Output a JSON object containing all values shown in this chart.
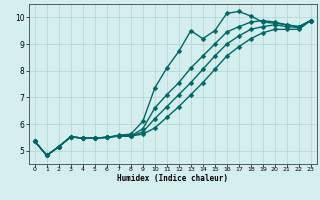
{
  "xlabel": "Humidex (Indice chaleur)",
  "bg_color": "#d4eeee",
  "grid_color": "#b8d8d8",
  "line_color": "#006666",
  "xlim": [
    -0.5,
    23.5
  ],
  "ylim": [
    4.5,
    10.5
  ],
  "xticks": [
    0,
    1,
    2,
    3,
    4,
    5,
    6,
    7,
    8,
    9,
    10,
    11,
    12,
    13,
    14,
    15,
    16,
    17,
    18,
    19,
    20,
    21,
    22,
    23
  ],
  "yticks": [
    5,
    6,
    7,
    8,
    9,
    10
  ],
  "line1_x": [
    0,
    1,
    2,
    3,
    4,
    5,
    6,
    7,
    8,
    9,
    10,
    11,
    12,
    13,
    14,
    15,
    16,
    17,
    18,
    19,
    20,
    21,
    22,
    23
  ],
  "line1_y": [
    5.35,
    4.82,
    5.15,
    5.52,
    5.47,
    5.47,
    5.5,
    5.58,
    5.62,
    6.1,
    7.35,
    8.1,
    8.72,
    9.5,
    9.2,
    9.5,
    10.15,
    10.22,
    10.05,
    9.82,
    9.78,
    9.72,
    9.65,
    9.88
  ],
  "line2_x": [
    0,
    1,
    2,
    3,
    4,
    5,
    6,
    7,
    8,
    9,
    10,
    11,
    12,
    13,
    14,
    15,
    16,
    17,
    18,
    19,
    20,
    21,
    22,
    23
  ],
  "line2_y": [
    5.35,
    4.82,
    5.15,
    5.52,
    5.47,
    5.47,
    5.5,
    5.55,
    5.55,
    5.82,
    6.6,
    7.1,
    7.55,
    8.1,
    8.55,
    9.0,
    9.45,
    9.65,
    9.82,
    9.88,
    9.82,
    9.72,
    9.65,
    9.88
  ],
  "line3_x": [
    0,
    1,
    2,
    3,
    4,
    5,
    6,
    7,
    8,
    9,
    10,
    11,
    12,
    13,
    14,
    15,
    16,
    17,
    18,
    19,
    20,
    21,
    22,
    23
  ],
  "line3_y": [
    5.35,
    4.82,
    5.15,
    5.52,
    5.47,
    5.47,
    5.5,
    5.55,
    5.55,
    5.7,
    6.2,
    6.65,
    7.1,
    7.55,
    8.05,
    8.55,
    9.0,
    9.3,
    9.55,
    9.65,
    9.72,
    9.65,
    9.62,
    9.88
  ],
  "line4_x": [
    0,
    1,
    2,
    3,
    4,
    5,
    6,
    7,
    8,
    9,
    10,
    11,
    12,
    13,
    14,
    15,
    16,
    17,
    18,
    19,
    20,
    21,
    22,
    23
  ],
  "line4_y": [
    5.35,
    4.82,
    5.15,
    5.52,
    5.47,
    5.47,
    5.5,
    5.55,
    5.55,
    5.62,
    5.85,
    6.25,
    6.65,
    7.1,
    7.55,
    8.05,
    8.55,
    8.9,
    9.2,
    9.42,
    9.55,
    9.55,
    9.55,
    9.88
  ],
  "marker_size": 2.5,
  "line_width": 1.0
}
